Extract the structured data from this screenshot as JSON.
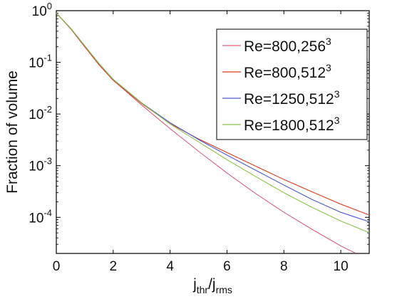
{
  "chart_data": {
    "type": "line",
    "title": "",
    "xlabel": {
      "main": "j",
      "sub1": "thr",
      "sep": "/j",
      "sub2": "rms"
    },
    "ylabel": "Fraction of volume",
    "xlim": [
      0,
      11
    ],
    "ylim": [
      2e-05,
      1
    ],
    "yscale": "log",
    "grid": false,
    "legend_position": "top-right",
    "x_ticks": [
      "0",
      "2",
      "4",
      "6",
      "8",
      "10"
    ],
    "y_ticks": [
      {
        "base": "10",
        "exp": "0"
      },
      {
        "base": "10",
        "exp": "-1"
      },
      {
        "base": "10",
        "exp": "-2"
      },
      {
        "base": "10",
        "exp": "-3"
      },
      {
        "base": "10",
        "exp": "-4"
      }
    ],
    "series": [
      {
        "name": "Re=800,256",
        "sup": "3",
        "color": "#d9607a",
        "x": [
          0,
          0.5,
          1,
          1.5,
          2,
          3,
          4,
          5,
          6,
          7,
          8,
          9,
          10,
          10.5
        ],
        "y": [
          0.9,
          0.45,
          0.2,
          0.09,
          0.045,
          0.015,
          0.0052,
          0.0019,
          0.00072,
          0.00029,
          0.000125,
          5.8e-05,
          2.8e-05,
          2.05e-05
        ]
      },
      {
        "name": "Re=800,512",
        "sup": "3",
        "color": "#e03a1e",
        "x": [
          0,
          0.5,
          1,
          1.5,
          2,
          3,
          4,
          5,
          6,
          7,
          8,
          9,
          10,
          11
        ],
        "y": [
          0.9,
          0.45,
          0.2,
          0.09,
          0.045,
          0.016,
          0.0065,
          0.0033,
          0.0018,
          0.00098,
          0.00054,
          0.00031,
          0.00018,
          0.000111
        ]
      },
      {
        "name": "Re=1250,512",
        "sup": "3",
        "color": "#4d5bd6",
        "x": [
          0,
          0.5,
          1,
          1.5,
          2,
          3,
          4,
          5,
          6,
          7,
          8,
          9,
          10,
          11
        ],
        "y": [
          0.9,
          0.46,
          0.21,
          0.095,
          0.047,
          0.0165,
          0.0068,
          0.0032,
          0.0016,
          0.00082,
          0.00042,
          0.00022,
          0.000125,
          8.2e-05
        ]
      },
      {
        "name": "Re=1800,512",
        "sup": "3",
        "color": "#8cc44a",
        "x": [
          0,
          0.5,
          1,
          1.5,
          2,
          3,
          4,
          5,
          6,
          7,
          8,
          9,
          10,
          11
        ],
        "y": [
          0.9,
          0.46,
          0.21,
          0.095,
          0.047,
          0.0165,
          0.0064,
          0.0029,
          0.0013,
          0.00062,
          0.0003,
          0.000155,
          8.5e-05,
          5.05e-05
        ]
      }
    ]
  }
}
